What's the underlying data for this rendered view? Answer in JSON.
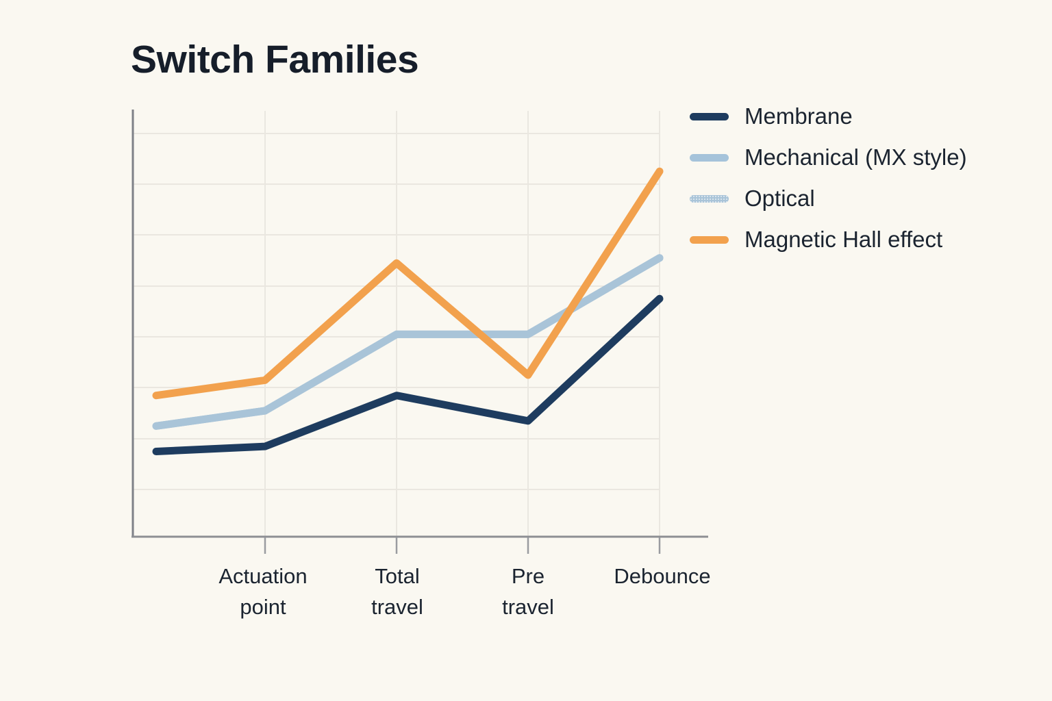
{
  "title": "Switch Families",
  "legend": {
    "entries": [
      {
        "label": "Membrane",
        "color": "#1e3c5f",
        "dotted": false
      },
      {
        "label": "Mechanical (MX style)",
        "color": "#a5c3da",
        "dotted": false
      },
      {
        "label": "Optical",
        "color": "#a9c4d8",
        "dotted": true
      },
      {
        "label": "Magnetic Hall effect",
        "color": "#f2a14d",
        "dotted": false
      }
    ]
  },
  "x_axis": {
    "labels": [
      "Actuation point",
      "Total travel",
      "Pre travel",
      "Debounce"
    ]
  },
  "colors": {
    "background": "#faf8f1",
    "text": "#1b2430",
    "gridline": "#eae7e0",
    "axis": "#85878c"
  },
  "chart_data": {
    "type": "line",
    "title": "Switch Families",
    "xlabel": "",
    "ylabel": "",
    "categories": [
      "",
      "Actuation point",
      "Total travel",
      "Pre travel",
      "Debounce"
    ],
    "series": [
      {
        "name": "Membrane",
        "color": "#1e3c5f",
        "values": [
          1.7,
          1.8,
          2.8,
          2.3,
          4.7
        ]
      },
      {
        "name": "Mechanical (MX style)",
        "color": "#a5c3da",
        "values": [
          2.2,
          2.5,
          4.0,
          4.0,
          5.5
        ]
      },
      {
        "name": "Optical",
        "color": "#a9c4d8",
        "values": [
          2.2,
          2.5,
          4.0,
          4.0,
          5.5
        ],
        "style": "dotted"
      },
      {
        "name": "Magnetic Hall effect",
        "color": "#f2a14d",
        "values": [
          2.8,
          3.1,
          5.4,
          3.2,
          7.2
        ]
      }
    ],
    "ylim": [
      0,
      8.4
    ],
    "y_tick_labels_visible": false,
    "grid": true,
    "legend_position": "right"
  }
}
